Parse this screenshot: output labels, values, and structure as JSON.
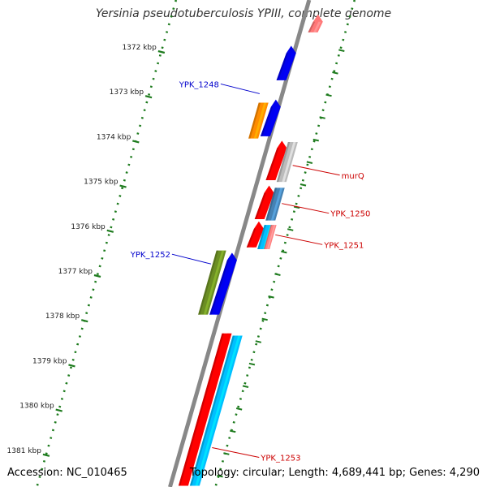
{
  "title": "Yersinia pseudotuberculosis YPIII, complete genome",
  "footer": {
    "accession": "Accession: NC_010465",
    "topology": "Topology: circular; Length: 4,689,441 bp; Genes: 4,290"
  },
  "colors": {
    "backbone": "#888888",
    "ticks": "#1e7b1e",
    "label_left": "#0000cc",
    "label_right": "#cc0000",
    "ruler_text": "#222222"
  },
  "ruler": {
    "unit": "kbp",
    "ticks": [
      {
        "kbp": 1372,
        "label": "1372 kbp"
      },
      {
        "kbp": 1373,
        "label": "1373 kbp"
      },
      {
        "kbp": 1374,
        "label": "1374 kbp"
      },
      {
        "kbp": 1375,
        "label": "1375 kbp"
      },
      {
        "kbp": 1376,
        "label": "1376 kbp"
      },
      {
        "kbp": 1377,
        "label": "1377 kbp"
      },
      {
        "kbp": 1378,
        "label": "1378 kbp"
      },
      {
        "kbp": 1379,
        "label": "1379 kbp"
      },
      {
        "kbp": 1380,
        "label": "1380 kbp"
      },
      {
        "kbp": 1381,
        "label": "1381 kbp"
      }
    ]
  },
  "features": [
    {
      "id": "f1",
      "start": 1371.18,
      "end": 1371.58,
      "track": "o1",
      "color": "#ff7777",
      "arrow": "start"
    },
    {
      "id": "f2",
      "start": 1371.88,
      "end": 1372.65,
      "track": "i1",
      "color": "#0000ee",
      "arrow": "start"
    },
    {
      "id": "f3",
      "start": 1373.08,
      "end": 1373.9,
      "track": "i1",
      "color": "#0000ee",
      "arrow": "start"
    },
    {
      "id": "f4",
      "start": 1373.15,
      "end": 1373.95,
      "track": "i2",
      "color": "#ff8c00",
      "arrow": "none"
    },
    {
      "id": "f5",
      "start": 1374.0,
      "end": 1374.88,
      "track": "o1",
      "color": "#ff0000",
      "arrow": "start"
    },
    {
      "id": "f6",
      "start": 1374.03,
      "end": 1374.92,
      "track": "o2",
      "color": "#bbbbbb",
      "arrow": "none"
    },
    {
      "id": "f7",
      "start": 1375.0,
      "end": 1375.75,
      "track": "o1",
      "color": "#ff0000",
      "arrow": "start"
    },
    {
      "id": "f8",
      "start": 1375.05,
      "end": 1375.78,
      "track": "o2",
      "color": "#4682b4",
      "arrow": "none"
    },
    {
      "id": "f9",
      "start": 1375.8,
      "end": 1376.38,
      "track": "o1",
      "color": "#ff0000",
      "arrow": "start"
    },
    {
      "id": "f10",
      "start": 1375.88,
      "end": 1376.42,
      "track": "o2",
      "color": "#00bfff",
      "arrow": "none"
    },
    {
      "id": "f11",
      "start": 1375.88,
      "end": 1376.42,
      "track": "o3",
      "color": "#ff8080",
      "arrow": "none"
    },
    {
      "id": "f12",
      "start": 1376.45,
      "end": 1377.88,
      "track": "i2",
      "color": "#6b8e23",
      "arrow": "none"
    },
    {
      "id": "f13",
      "start": 1376.5,
      "end": 1377.88,
      "track": "i1",
      "color": "#0000ee",
      "arrow": "start"
    },
    {
      "id": "f14",
      "start": 1378.3,
      "end": 1381.7,
      "track": "o1",
      "color": "#ff0000",
      "arrow": "none"
    },
    {
      "id": "f15",
      "start": 1378.35,
      "end": 1381.7,
      "track": "o2",
      "color": "#00bfff",
      "arrow": "none"
    }
  ],
  "labels": [
    {
      "text": "YPK_1248",
      "side": "left",
      "kbp": 1372.95,
      "track": "i2"
    },
    {
      "text": "murQ",
      "side": "right",
      "kbp": 1374.55,
      "track": "o2"
    },
    {
      "text": "YPK_1250",
      "side": "right",
      "kbp": 1375.4,
      "track": "o2"
    },
    {
      "text": "YPK_1251",
      "side": "right",
      "kbp": 1376.1,
      "track": "o3"
    },
    {
      "text": "YPK_1252",
      "side": "left",
      "kbp": 1376.75,
      "track": "i2"
    },
    {
      "text": "YPK_1253",
      "side": "right",
      "kbp": 1380.85,
      "track": "o2"
    }
  ]
}
